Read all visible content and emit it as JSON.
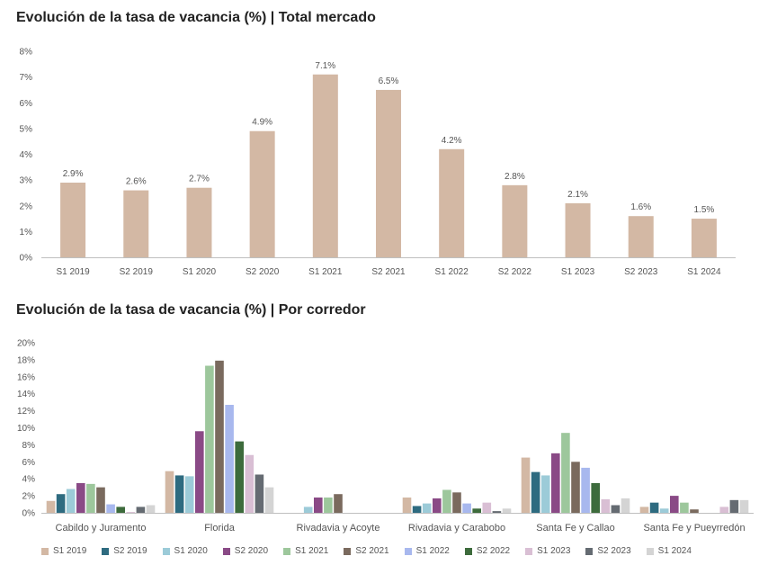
{
  "chart_data": [
    {
      "type": "bar",
      "title": "Evolución de la tasa de vacancia (%) | Total mercado",
      "categories": [
        "S1 2019",
        "S2 2019",
        "S1 2020",
        "S2 2020",
        "S1 2021",
        "S2 2021",
        "S1 2022",
        "S2 2022",
        "S1 2023",
        "S2 2023",
        "S1 2024"
      ],
      "values": [
        2.9,
        2.6,
        2.7,
        4.9,
        7.1,
        6.5,
        4.2,
        2.8,
        2.1,
        1.6,
        1.5
      ],
      "data_labels": [
        "2.9%",
        "2.6%",
        "2.7%",
        "4.9%",
        "7.1%",
        "6.5%",
        "4.2%",
        "2.8%",
        "2.1%",
        "1.6%",
        "1.5%"
      ],
      "yticks": [
        "0%",
        "1%",
        "2%",
        "3%",
        "4%",
        "5%",
        "6%",
        "7%",
        "8%"
      ],
      "ylim": [
        0,
        8
      ],
      "color": "#d3b8a4",
      "grid": false,
      "xlabel": "",
      "ylabel": ""
    },
    {
      "type": "bar",
      "title": "Evolución de la tasa de vacancia (%) | Por corredor",
      "categories": [
        "Cabildo y Juramento",
        "Florida",
        "Rivadavia y Acoyte",
        "Rivadavia y Carabobo",
        "Santa Fe y Callao",
        "Santa Fe y Pueyrredón"
      ],
      "yticks": [
        "0%",
        "2%",
        "4%",
        "6%",
        "8%",
        "10%",
        "12%",
        "14%",
        "16%",
        "18%",
        "20%"
      ],
      "ylim": [
        0,
        20
      ],
      "legend_position": "bottom",
      "grid": false,
      "xlabel": "",
      "ylabel": "",
      "series": [
        {
          "name": "S1 2019",
          "color": "#d3b8a4",
          "values": [
            1.4,
            4.9,
            0.0,
            1.8,
            6.5,
            0.7
          ]
        },
        {
          "name": "S2 2019",
          "color": "#2e6b80",
          "values": [
            2.2,
            4.4,
            0.0,
            0.8,
            4.8,
            1.2
          ]
        },
        {
          "name": "S1 2020",
          "color": "#9ccbd8",
          "values": [
            2.8,
            4.3,
            0.7,
            1.1,
            4.4,
            0.5
          ]
        },
        {
          "name": "S2 2020",
          "color": "#8a4a86",
          "values": [
            3.5,
            9.6,
            1.8,
            1.7,
            7.0,
            2.0
          ]
        },
        {
          "name": "S1 2021",
          "color": "#9dc79c",
          "values": [
            3.4,
            17.3,
            1.8,
            2.7,
            9.4,
            1.2
          ]
        },
        {
          "name": "S2 2021",
          "color": "#7a6a5e",
          "values": [
            3.0,
            17.9,
            2.2,
            2.4,
            6.0,
            0.4
          ]
        },
        {
          "name": "S1 2022",
          "color": "#a8b8ee",
          "values": [
            1.0,
            12.7,
            0.0,
            1.1,
            5.3,
            0.0
          ]
        },
        {
          "name": "S2 2022",
          "color": "#3d6b3c",
          "values": [
            0.7,
            8.4,
            0.0,
            0.5,
            3.5,
            0.0
          ]
        },
        {
          "name": "S1 2023",
          "color": "#d9bfd4",
          "values": [
            0.1,
            6.8,
            0.0,
            1.2,
            1.6,
            0.7
          ]
        },
        {
          "name": "S2 2023",
          "color": "#656b72",
          "values": [
            0.7,
            4.5,
            0.0,
            0.2,
            0.9,
            1.5
          ]
        },
        {
          "name": "S1 2024",
          "color": "#d4d4d4",
          "values": [
            0.9,
            3.0,
            0.0,
            0.5,
            1.7,
            1.5
          ]
        }
      ]
    }
  ]
}
